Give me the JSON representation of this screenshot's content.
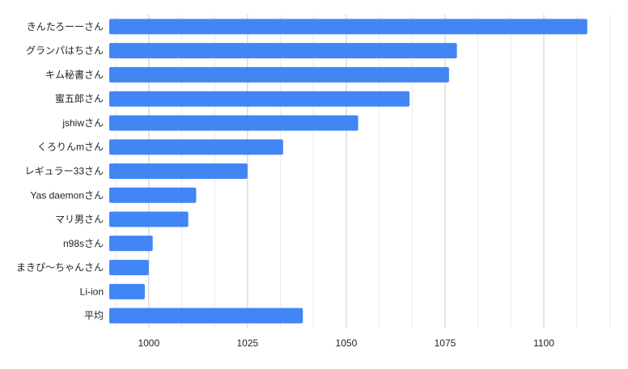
{
  "chart_data": {
    "type": "bar",
    "orientation": "horizontal",
    "title": "",
    "xlabel": "",
    "ylabel": "",
    "categories": [
      "きんたろーーさん",
      "グランパはちさん",
      "キム秘書さん",
      "蜜五郎さん",
      "jshiwさん",
      "くろりんmさん",
      "レギュラー33さん",
      "Yas daemonさん",
      "マリ男さん",
      "n98sさん",
      "まきぴ〜ちゃんさん",
      "Li-ion",
      "平均"
    ],
    "values": [
      1111,
      1078,
      1076,
      1066,
      1053,
      1034,
      1025,
      1012,
      1010,
      1001,
      1000,
      999,
      1039
    ],
    "xlim": [
      990,
      1117
    ],
    "xticks": [
      "1000",
      "1025",
      "1050",
      "1075",
      "1100"
    ],
    "grid": true,
    "legend": "none",
    "bar_color": "#4285f4"
  }
}
